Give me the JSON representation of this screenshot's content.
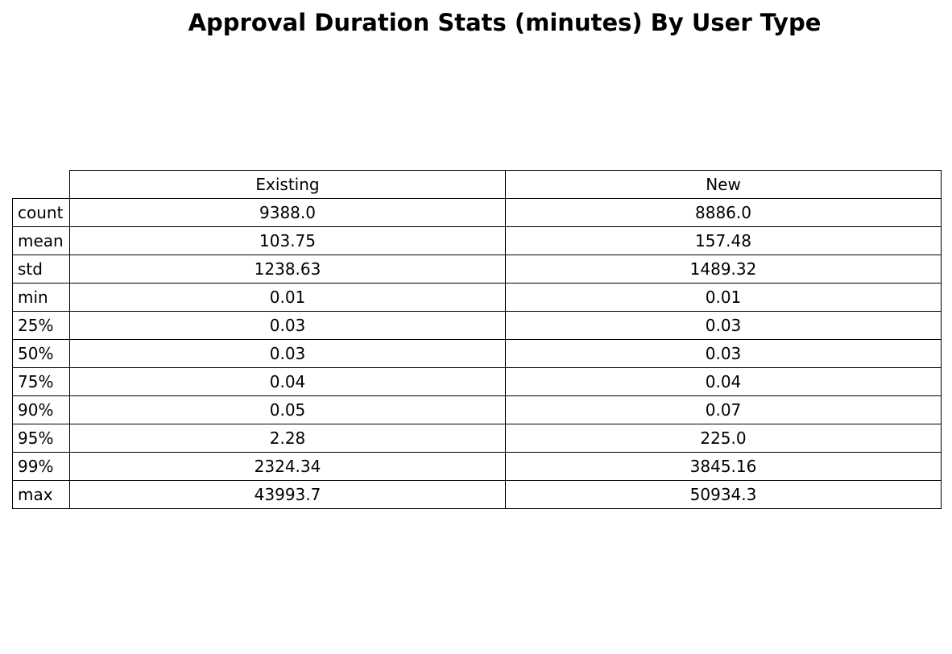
{
  "chart_data": {
    "type": "table",
    "title": "Approval Duration Stats (minutes) By User Type",
    "columns": [
      "Existing",
      "New"
    ],
    "rows": [
      {
        "label": "count",
        "values": [
          "9388.0",
          "8886.0"
        ]
      },
      {
        "label": "mean",
        "values": [
          "103.75",
          "157.48"
        ]
      },
      {
        "label": "std",
        "values": [
          "1238.63",
          "1489.32"
        ]
      },
      {
        "label": "min",
        "values": [
          "0.01",
          "0.01"
        ]
      },
      {
        "label": "25%",
        "values": [
          "0.03",
          "0.03"
        ]
      },
      {
        "label": "50%",
        "values": [
          "0.03",
          "0.03"
        ]
      },
      {
        "label": "75%",
        "values": [
          "0.04",
          "0.04"
        ]
      },
      {
        "label": "90%",
        "values": [
          "0.05",
          "0.07"
        ]
      },
      {
        "label": "95%",
        "values": [
          "2.28",
          "225.0"
        ]
      },
      {
        "label": "99%",
        "values": [
          "2324.34",
          "3845.16"
        ]
      },
      {
        "label": "max",
        "values": [
          "43993.7",
          "50934.3"
        ]
      }
    ]
  }
}
